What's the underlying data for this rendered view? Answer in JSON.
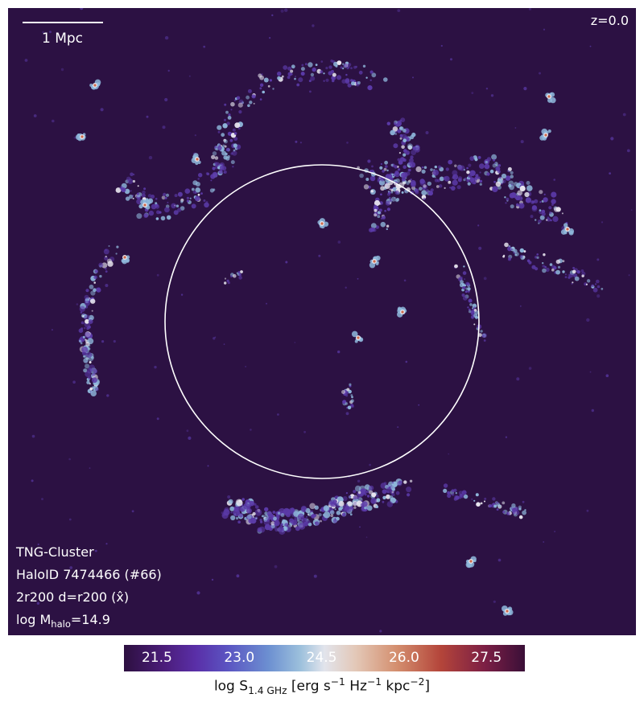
{
  "scale_bar": {
    "label": "1 Mpc"
  },
  "redshift": "z=0.0",
  "info": {
    "simulation": "TNG-Cluster",
    "halo": "HaloID 7474466 (#66)",
    "projection": "2r200 d=r200 (x̂)",
    "mass_prefix": "log M",
    "mass_sub": "halo",
    "mass_value": "=14.9"
  },
  "colorbar": {
    "ticks": [
      "21.5",
      "23.0",
      "24.5",
      "26.0",
      "27.5"
    ],
    "tick_values": [
      21.5,
      23.0,
      24.5,
      26.0,
      27.5
    ],
    "range": [
      20.9,
      28.2
    ],
    "label_prefix": "log S",
    "label_sub": "1.4 GHz",
    "label_suffix": " [erg s",
    "label_exp1": "−1",
    "label_mid": " Hz",
    "label_exp2": "−1",
    "label_mid2": " kpc",
    "label_exp3": "−2",
    "label_end": "]"
  },
  "colors": {
    "background": "#2c1143",
    "circle": "#ffffff",
    "low": "#5b3aa8",
    "mid": "#8fb8dc",
    "high": "#e8e6ef",
    "peak": "#d06a4a"
  }
}
